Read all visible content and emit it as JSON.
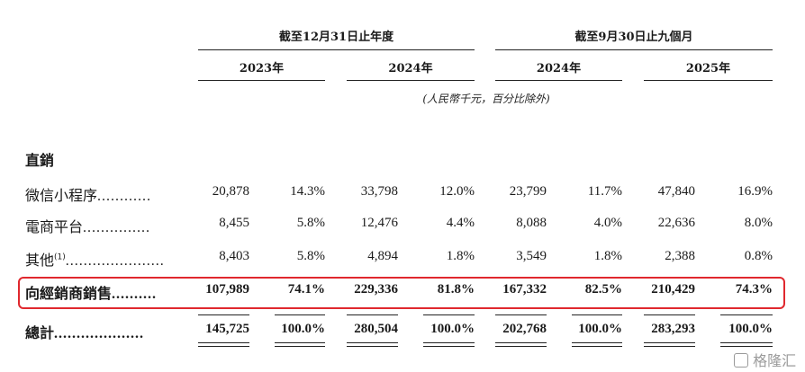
{
  "header": {
    "group1": "截至12月31日止年度",
    "group2": "截至9月30日止九個月",
    "years": [
      "2023年",
      "2024年",
      "2024年",
      "2025年"
    ],
    "unit_note": "(人民幣千元，百分比除外)"
  },
  "section_title": "直銷",
  "rows": [
    {
      "label": "微信小程序",
      "dots": "............",
      "values": [
        "20,878",
        "14.3%",
        "33,798",
        "12.0%",
        "23,799",
        "11.7%",
        "47,840",
        "16.9%"
      ]
    },
    {
      "label": "電商平台",
      "dots": "...............",
      "values": [
        "8,455",
        "5.8%",
        "12,476",
        "4.4%",
        "8,088",
        "4.0%",
        "22,636",
        "8.0%"
      ]
    },
    {
      "label": "其他",
      "sup": "(1)",
      "dots": "......................",
      "values": [
        "8,403",
        "5.8%",
        "4,894",
        "1.8%",
        "3,549",
        "1.8%",
        "2,388",
        "0.8%"
      ]
    },
    {
      "label": "向經銷商銷售",
      "dots": "..........",
      "values": [
        "107,989",
        "74.1%",
        "229,336",
        "81.8%",
        "167,332",
        "82.5%",
        "210,429",
        "74.3%"
      ]
    },
    {
      "label": "總計",
      "dots": "....................",
      "values": [
        "145,725",
        "100.0%",
        "280,504",
        "100.0%",
        "202,768",
        "100.0%",
        "283,293",
        "100.0%"
      ]
    }
  ],
  "watermark": "格隆汇",
  "colors": {
    "highlight": "#e0282e"
  }
}
